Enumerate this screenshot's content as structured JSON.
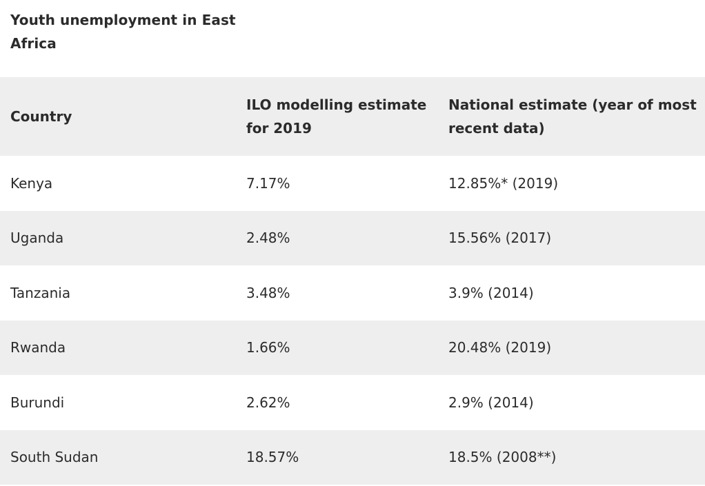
{
  "caption": "Youth unemployment in East Africa",
  "table": {
    "headers": [
      "Country",
      "ILO modelling estimate for 2019",
      "National estimate (year of most recent data)"
    ],
    "rows": [
      [
        "Kenya",
        "7.17%",
        "12.85%* (2019)"
      ],
      [
        "Uganda",
        "2.48%",
        "15.56% (2017)"
      ],
      [
        "Tanzania",
        "3.48%",
        "3.9% (2014)"
      ],
      [
        "Rwanda",
        "1.66%",
        "20.48% (2019)"
      ],
      [
        "Burundi",
        "2.62%",
        "2.9% (2014)"
      ],
      [
        "South Sudan",
        "18.57%",
        "18.5% (2008**)"
      ]
    ]
  },
  "colors": {
    "stripe": "#eeeeee",
    "background": "#ffffff",
    "text": "#2b2b2b"
  }
}
